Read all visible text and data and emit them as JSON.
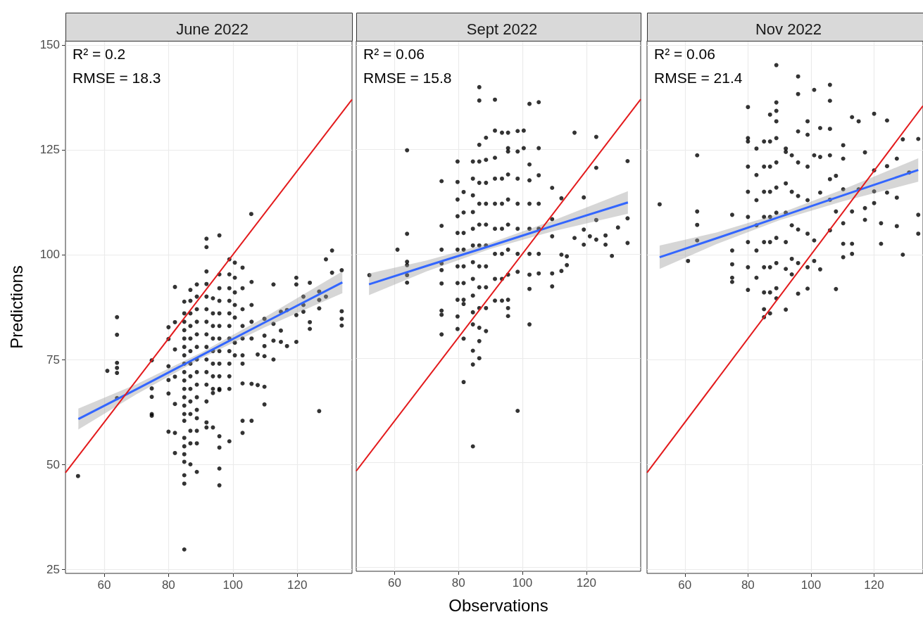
{
  "chart_data": [
    {
      "type": "scatter",
      "title": "June 2022",
      "ylabel": "Predictions",
      "annotations": [
        "R² = 0.2",
        "RMSE = 18.3"
      ],
      "xlim": [
        48,
        137
      ],
      "ylim": [
        24,
        151
      ],
      "xticks": [
        60,
        80,
        100,
        120
      ],
      "yticks": [
        25,
        50,
        75,
        100,
        125,
        150
      ],
      "grid": true,
      "series": [
        {
          "type": "scatter",
          "marker": "circle",
          "color": "#000000",
          "x": [
            51.9,
            61,
            64,
            64,
            64,
            64,
            64,
            64,
            74.8,
            74.8,
            74.8,
            74.8,
            74.8,
            80,
            80,
            80,
            80,
            80,
            80,
            82,
            82,
            82,
            82,
            82,
            82,
            82,
            84.9,
            84.9,
            84.9,
            84.9,
            84.9,
            84.9,
            84.9,
            84.9,
            84.9,
            84.9,
            84.9,
            84.9,
            84.9,
            84.9,
            84.9,
            84.9,
            84.9,
            84.9,
            84.9,
            84.9,
            84.9,
            84.9,
            86.8,
            86.8,
            86.8,
            86.8,
            86.8,
            86.8,
            86.8,
            86.8,
            86.8,
            86.8,
            86.8,
            86.8,
            86.8,
            86.8,
            88.8,
            88.8,
            88.8,
            88.8,
            88.8,
            88.8,
            88.8,
            88.8,
            88.8,
            88.8,
            88.8,
            88.8,
            88.8,
            88.8,
            88.8,
            91.8,
            91.8,
            91.8,
            91.8,
            91.8,
            91.8,
            91.8,
            91.8,
            91.8,
            91.8,
            91.8,
            91.8,
            91.8,
            91.8,
            91.8,
            93.8,
            93.8,
            93.8,
            93.8,
            93.8,
            93.8,
            93.8,
            93.8,
            93.8,
            93.8,
            95.8,
            95.8,
            95.8,
            95.8,
            95.8,
            95.8,
            95.8,
            95.8,
            95.8,
            95.8,
            95.8,
            95.8,
            95.8,
            95.8,
            95.8,
            95.8,
            98.9,
            98.9,
            98.9,
            98.9,
            98.9,
            98.9,
            98.9,
            98.9,
            98.9,
            98.9,
            98.9,
            98.9,
            100.6,
            100.6,
            100.6,
            100.6,
            100.6,
            100.6,
            100.6,
            103,
            103,
            103,
            103,
            103,
            103,
            103,
            103,
            103,
            103,
            105.7,
            105.8,
            105.8,
            105.8,
            105.8,
            105.8,
            105.8,
            107.7,
            107.7,
            109.8,
            109.8,
            109.8,
            109.8,
            109.8,
            109.8,
            112.6,
            112.6,
            112.6,
            112.6,
            114.9,
            114.9,
            114.9,
            116.8,
            116.8,
            119.7,
            119.7,
            119.7,
            119.7,
            121.9,
            121.9,
            121.9,
            123.9,
            123.9,
            123.9,
            126.8,
            126.8,
            126.8,
            126.8,
            128.9,
            128.9,
            130.8,
            130.8,
            133.8,
            133.8,
            133.8,
            133.8
          ],
          "values": [
            47.2,
            72.3,
            85.1,
            80.9,
            74.2,
            73,
            71.8,
            65.8,
            74.8,
            68.1,
            66.1,
            62,
            61.6,
            82.7,
            79.9,
            73.4,
            70.1,
            66.9,
            57.8,
            92.3,
            83.9,
            77.4,
            70.9,
            64.4,
            57.5,
            52.7,
            88.8,
            86,
            84,
            82,
            80,
            78,
            76,
            74,
            72,
            70,
            68,
            66,
            64,
            62,
            60.4,
            56.3,
            54.3,
            52.4,
            50.6,
            47.4,
            45.4,
            29.7,
            91.6,
            89,
            86,
            83,
            80,
            77,
            74,
            71,
            68,
            65,
            62,
            58,
            55,
            50,
            92.9,
            90,
            87,
            84,
            81,
            78,
            75,
            72,
            69,
            66,
            63,
            61,
            58,
            55,
            48.2,
            103.8,
            101.8,
            96,
            93,
            90,
            87,
            84,
            81,
            78,
            75,
            72,
            69,
            65,
            60,
            58.8,
            89.6,
            86,
            83,
            80,
            77,
            74,
            71,
            68,
            67,
            58.8,
            104.6,
            95.3,
            92,
            89,
            86,
            83,
            80,
            77,
            74,
            71,
            68,
            67.7,
            56.7,
            54,
            49,
            45,
            98.9,
            95.3,
            92,
            89,
            86,
            83,
            80,
            77,
            74,
            71,
            68,
            55.5,
            98.1,
            94.5,
            91,
            88,
            85,
            79,
            76,
            96.9,
            92,
            87,
            83,
            80,
            76,
            74,
            69.3,
            60.4,
            57.5,
            109.7,
            93.5,
            88,
            84,
            80,
            69.2,
            60.4,
            76.2,
            68.9,
            84.7,
            80.7,
            78.2,
            75.8,
            68.5,
            64.3,
            92.9,
            83.5,
            79.5,
            75,
            86.4,
            81.9,
            79.2,
            86.8,
            78.2,
            94.5,
            92.9,
            85.6,
            79.2,
            90,
            88,
            86.4,
            93.3,
            83.9,
            82.3,
            91.2,
            89.2,
            87.2,
            62.7,
            98.9,
            90,
            101,
            95.7,
            96.3,
            86.5,
            84.7,
            83.1
          ]
        },
        {
          "type": "line",
          "color": "#3366ff",
          "x": [
            52,
            70,
            90,
            110,
            134
          ],
          "values": [
            60.8,
            67.9,
            75.9,
            83.9,
            93.4
          ],
          "lower": [
            58.3,
            66.7,
            75.2,
            82.7,
            90.8
          ],
          "upper": [
            63.3,
            69.1,
            76.6,
            85.1,
            96
          ]
        },
        {
          "type": "line",
          "color": "#e31a1c",
          "x": [
            48,
            137
          ],
          "values": [
            48,
            137
          ]
        }
      ]
    },
    {
      "type": "scatter",
      "title": "Sept 2022",
      "xlabel": "Observations",
      "annotations": [
        "R² = 0.06",
        "RMSE = 15.8"
      ],
      "xlim": [
        48,
        137
      ],
      "ylim": [
        24,
        151
      ],
      "xticks": [
        60,
        80,
        100,
        120
      ],
      "yticks": [
        25,
        50,
        75,
        100,
        125,
        150
      ],
      "grid": true,
      "tick_labels": "x",
      "series": [
        {
          "type": "scatter",
          "marker": "circle",
          "color": "#000000",
          "x": [
            52.1,
            60.9,
            63.9,
            63.9,
            63.9,
            63.9,
            63.9,
            63.9,
            74.7,
            74.7,
            74.7,
            74.7,
            74.7,
            74.7,
            74.7,
            74.7,
            74.7,
            79.7,
            79.7,
            79.7,
            79.7,
            79.7,
            79.7,
            79.7,
            79.7,
            79.7,
            79.7,
            79.7,
            81.6,
            81.6,
            81.6,
            81.6,
            81.6,
            81.6,
            81.6,
            81.6,
            81.6,
            81.6,
            84.5,
            84.5,
            84.5,
            84.5,
            84.5,
            84.5,
            84.5,
            84.5,
            84.5,
            84.5,
            84.5,
            84.5,
            84.5,
            84.5,
            86.5,
            86.5,
            86.5,
            86.5,
            86.5,
            86.5,
            86.5,
            86.5,
            86.5,
            86.5,
            86.5,
            86.5,
            86.5,
            86.5,
            88.6,
            88.6,
            88.6,
            88.6,
            88.6,
            88.6,
            88.6,
            88.6,
            88.6,
            88.6,
            91.4,
            91.4,
            91.4,
            91.4,
            91.4,
            91.4,
            91.4,
            91.4,
            91.4,
            93.6,
            93.6,
            93.6,
            93.6,
            93.6,
            93.6,
            93.6,
            95.5,
            95.5,
            95.5,
            95.5,
            95.5,
            95.5,
            95.5,
            95.5,
            95.5,
            95.5,
            95.5,
            98.5,
            98.5,
            98.5,
            98.5,
            98.5,
            98.5,
            98.5,
            98.5,
            100.4,
            100.4,
            102.2,
            102.2,
            102.2,
            102.2,
            102.2,
            102.2,
            102.2,
            102.2,
            102.2,
            105.1,
            105.1,
            105.1,
            105.1,
            105.1,
            105.1,
            105.1,
            109.3,
            109.3,
            109.3,
            109.3,
            109.3,
            112.2,
            112.2,
            112.2,
            113.9,
            113.9,
            116.3,
            116.3,
            119.2,
            119.2,
            119.2,
            121.1,
            123.1,
            123.1,
            123.1,
            123.1,
            126,
            126,
            128,
            129.9,
            132.9,
            132.9,
            132.9
          ],
          "values": [
            94.9,
            101,
            124.8,
            104.8,
            98.1,
            97.3,
            94.9,
            93.1,
            117.4,
            106.7,
            101,
            97.7,
            96.1,
            92.9,
            86.4,
            85.4,
            80.7,
            122.1,
            117.2,
            113,
            109,
            105,
            101,
            97,
            93,
            89,
            85,
            82,
            114.8,
            109.9,
            105,
            101,
            97,
            93,
            89,
            88,
            79.7,
            69.3,
            122.1,
            118,
            114,
            110,
            106,
            102,
            98,
            94,
            90,
            86,
            83.1,
            76.8,
            73.5,
            53.9,
            139.9,
            136.7,
            126.1,
            122.1,
            117,
            112,
            107,
            102,
            97,
            92,
            87,
            82.3,
            79.1,
            75,
            127.8,
            122.5,
            117,
            112,
            107,
            102,
            97,
            92,
            87,
            81.5,
            136.9,
            129.5,
            123,
            118,
            112,
            106,
            100,
            94,
            88.8,
            129,
            118,
            112,
            106,
            100,
            94,
            88.8,
            129,
            125.3,
            124.5,
            119,
            113,
            107,
            101,
            95,
            89,
            87,
            85.1,
            129.4,
            124.5,
            118,
            112,
            106,
            100,
            95.7,
            62.4,
            129.5,
            125.3,
            135.9,
            121.4,
            117.6,
            112,
            106,
            100,
            95,
            91.6,
            83.1,
            136.3,
            125.3,
            118.8,
            112,
            106,
            100,
            95.3,
            115.8,
            108.3,
            104.2,
            95.3,
            92.2,
            113.3,
            99.8,
            95.9,
            99.4,
            97.3,
            129,
            103.8,
            113.5,
            105.8,
            102.2,
            104.2,
            128,
            120.6,
            108.1,
            103.4,
            104.4,
            102.2,
            99.5,
            106.3,
            122.2,
            108.5,
            102.6
          ]
        },
        {
          "type": "line",
          "color": "#3366ff",
          "x": [
            52,
            70,
            90,
            110,
            133
          ],
          "values": [
            92.7,
            97.1,
            101.9,
            106.8,
            112.3
          ],
          "lower": [
            90.1,
            95.8,
            101.2,
            105.5,
            109.6
          ],
          "upper": [
            95.3,
            98.4,
            102.6,
            108.1,
            115
          ]
        },
        {
          "type": "line",
          "color": "#e31a1c",
          "x": [
            48,
            137
          ],
          "values": [
            48,
            137
          ]
        }
      ]
    },
    {
      "type": "scatter",
      "title": "Nov 2022",
      "annotations": [
        "R² = 0.06",
        "RMSE = 21.4"
      ],
      "xlim": [
        48,
        135.5
      ],
      "ylim": [
        24,
        151
      ],
      "xticks": [
        60,
        80,
        100,
        120
      ],
      "yticks": [
        25,
        50,
        75,
        100,
        125,
        150
      ],
      "grid": true,
      "tick_labels": "x",
      "series": [
        {
          "type": "scatter",
          "marker": "circle",
          "color": "#000000",
          "x": [
            52,
            61,
            63.9,
            63.9,
            63.9,
            63.9,
            75,
            75,
            75,
            75,
            75,
            80,
            80,
            80,
            80,
            80,
            80,
            80,
            80,
            80,
            82.7,
            82.7,
            82.7,
            82.7,
            82.7,
            82.7,
            85.1,
            85.1,
            85.1,
            85.1,
            85.1,
            85.1,
            85.1,
            85.1,
            85.1,
            87,
            87,
            87,
            87,
            87,
            87,
            87,
            87,
            87,
            89,
            89,
            89,
            89,
            89,
            89,
            89,
            89,
            89,
            89,
            89,
            89,
            92,
            92,
            92,
            92,
            92,
            92,
            92,
            93.9,
            93.9,
            93.9,
            93.9,
            93.9,
            95.9,
            95.9,
            95.9,
            95.9,
            95.9,
            95.9,
            95.9,
            95.9,
            98.9,
            98.9,
            98.9,
            98.9,
            98.9,
            98.9,
            98.9,
            101,
            101,
            101,
            101,
            102.9,
            102.9,
            102.9,
            102.9,
            106,
            106,
            106,
            106,
            106,
            106,
            106,
            107.9,
            107.9,
            107.9,
            110.2,
            110.2,
            110.2,
            110.2,
            110.2,
            110.2,
            113,
            113,
            113,
            113,
            115.1,
            115.1,
            117.1,
            117.1,
            117.1,
            120,
            120,
            120,
            120,
            122.2,
            122.2,
            124.1,
            124.1,
            124.1,
            127.2,
            127.2,
            127.2,
            129.1,
            129.1,
            131.1,
            134,
            134,
            134
          ],
          "values": [
            112,
            98.5,
            123.7,
            110.3,
            107.1,
            103.4,
            109.5,
            101,
            97.7,
            94.5,
            93.5,
            135.2,
            127.8,
            127,
            121,
            115,
            109,
            103,
            97,
            91.6,
            125.3,
            119,
            113,
            107,
            101,
            94.5,
            127,
            121,
            115,
            109,
            103,
            97,
            91,
            87,
            85.1,
            133.4,
            127,
            121,
            115,
            109,
            103,
            97,
            91,
            86,
            145.2,
            136.3,
            134.3,
            131.8,
            127.8,
            122,
            116,
            110,
            104,
            98,
            92,
            89.6,
            125.3,
            124.5,
            117,
            110,
            103,
            96.6,
            86.9,
            123.7,
            115,
            107,
            99,
            95.3,
            142.5,
            138.3,
            129.4,
            122,
            114,
            106,
            98,
            90.7,
            131.8,
            128.6,
            121,
            113,
            105,
            97,
            91.9,
            139.3,
            123.7,
            103.4,
            98.5,
            130.2,
            123.3,
            114.8,
            96.5,
            140.5,
            136.7,
            130,
            123.7,
            118,
            113.1,
            105.8,
            118.8,
            110.3,
            91.8,
            126.1,
            122.9,
            115.6,
            107.5,
            102.6,
            99.4,
            132.8,
            110.3,
            102.6,
            100.2,
            131.8,
            115.6,
            124.4,
            111.1,
            108.3,
            133.6,
            120.1,
            115.1,
            112.3,
            107.5,
            102.6,
            132,
            121.1,
            114.8,
            122.9,
            113.6,
            106.8,
            127.5,
            100,
            119.6,
            127.6,
            109.5,
            105
          ]
        },
        {
          "type": "line",
          "color": "#3366ff",
          "x": [
            52,
            70,
            90,
            110,
            134
          ],
          "values": [
            99.4,
            103.9,
            109,
            114.1,
            120.2
          ],
          "lower": [
            96.6,
            102.5,
            108.2,
            112.7,
            117.4
          ],
          "upper": [
            102.2,
            105.3,
            109.8,
            115.5,
            123
          ]
        },
        {
          "type": "line",
          "color": "#e31a1c",
          "x": [
            48,
            135.5
          ],
          "values": [
            48,
            135.5
          ]
        }
      ]
    }
  ]
}
